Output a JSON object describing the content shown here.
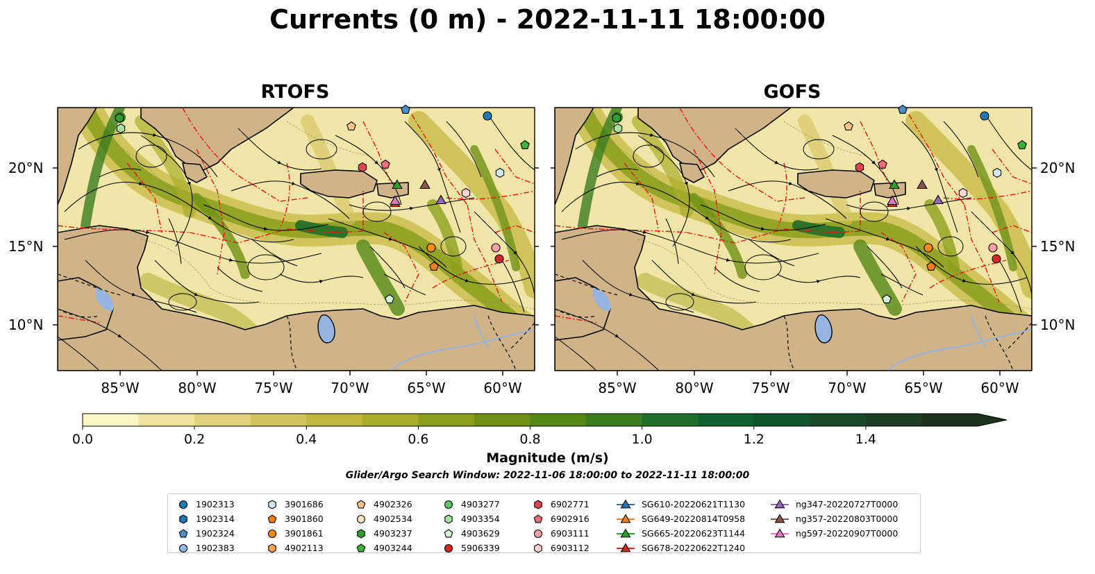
{
  "figure": {
    "title": "Currents (0 m) - 2022-11-11 18:00:00",
    "panels": [
      {
        "title": "RTOFS"
      },
      {
        "title": "GOFS"
      }
    ],
    "lat_ticks": [
      "10°N",
      "15°N",
      "20°N"
    ],
    "lon_ticks": [
      "85°W",
      "80°W",
      "75°W",
      "70°W",
      "65°W",
      "60°W"
    ],
    "colorbar": {
      "label": "Magnitude (m/s)",
      "ticks": [
        "0.0",
        "0.2",
        "0.4",
        "0.6",
        "0.8",
        "1.0",
        "1.2",
        "1.4"
      ],
      "colors": [
        "#fbf6c6",
        "#efe29c",
        "#e1d17a",
        "#d2c35c",
        "#c1b840",
        "#a9ad2a",
        "#8c9f1c",
        "#6f9216",
        "#538816",
        "#3a7c1e",
        "#1f6e2a",
        "#0f6230",
        "#11552d",
        "#1a4a28",
        "#1d3e22",
        "#1d321c"
      ]
    },
    "search_window": "Glider/Argo Search Window: 2022-11-06 18:00:00 to 2022-11-11 18:00:00"
  },
  "legend": {
    "items": [
      {
        "label": "1902313",
        "marker": "circle",
        "color": "#1f77b4"
      },
      {
        "label": "1902314",
        "marker": "hexagon",
        "color": "#1f77b4"
      },
      {
        "label": "1902324",
        "marker": "pentagon",
        "color": "#4a90c8"
      },
      {
        "label": "1902383",
        "marker": "circle",
        "color": "#8fbce6"
      },
      {
        "label": "3901686",
        "marker": "hexagon",
        "color": "#cfe6fb"
      },
      {
        "label": "3901860",
        "marker": "pentagon",
        "color": "#ff7f0e"
      },
      {
        "label": "3901861",
        "marker": "circle",
        "color": "#ff8c1a"
      },
      {
        "label": "4902113",
        "marker": "hexagon",
        "color": "#ffa552"
      },
      {
        "label": "4902326",
        "marker": "pentagon",
        "color": "#ffc48a"
      },
      {
        "label": "4902534",
        "marker": "circle",
        "color": "#ffe0c0"
      },
      {
        "label": "4903237",
        "marker": "hexagon",
        "color": "#2ca02c"
      },
      {
        "label": "4903244",
        "marker": "pentagon",
        "color": "#3cb43c"
      },
      {
        "label": "4903277",
        "marker": "circle",
        "color": "#62c462"
      },
      {
        "label": "4903354",
        "marker": "hexagon",
        "color": "#a6e3a0"
      },
      {
        "label": "4903629",
        "marker": "pentagon",
        "color": "#d4f5d0"
      },
      {
        "label": "5906339",
        "marker": "circle",
        "color": "#d62728"
      },
      {
        "label": "6902771",
        "marker": "hexagon",
        "color": "#e0454f"
      },
      {
        "label": "6902916",
        "marker": "pentagon",
        "color": "#ee6e78"
      },
      {
        "label": "6903111",
        "marker": "circle",
        "color": "#f5a3a8"
      },
      {
        "label": "6903112",
        "marker": "hexagon",
        "color": "#fcd4d4"
      },
      {
        "label": "SG610-20220621T1130",
        "marker": "triangle-line",
        "color": "#1f77b4"
      },
      {
        "label": "SG649-20220814T0958",
        "marker": "triangle-line",
        "color": "#ff7f0e"
      },
      {
        "label": "SG665-20220623T1144",
        "marker": "triangle-line",
        "color": "#2ca02c"
      },
      {
        "label": "SG678-20220622T1240",
        "marker": "triangle-line",
        "color": "#d62728"
      },
      {
        "label": "ng347-20220727T0000",
        "marker": "triangle-line",
        "color": "#9467bd"
      },
      {
        "label": "ng357-20220803T0000",
        "marker": "triangle-line",
        "color": "#8c564b"
      },
      {
        "label": "ng597-20220907T0000",
        "marker": "triangle-line",
        "color": "#e377c2"
      }
    ]
  }
}
